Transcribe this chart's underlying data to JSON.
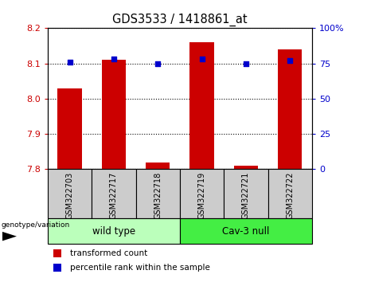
{
  "title": "GDS3533 / 1418861_at",
  "samples": [
    "GSM322703",
    "GSM322717",
    "GSM322718",
    "GSM322719",
    "GSM322721",
    "GSM322722"
  ],
  "red_values": [
    8.03,
    8.11,
    7.82,
    8.16,
    7.81,
    8.14
  ],
  "blue_values": [
    76,
    78,
    75,
    78,
    75,
    77
  ],
  "ylim_left": [
    7.8,
    8.2
  ],
  "ylim_right": [
    0,
    100
  ],
  "yticks_left": [
    7.8,
    7.9,
    8.0,
    8.1,
    8.2
  ],
  "yticks_right": [
    0,
    25,
    50,
    75,
    100
  ],
  "red_color": "#cc0000",
  "blue_color": "#0000cc",
  "bar_width": 0.55,
  "groups": [
    {
      "label": "wild type",
      "indices": [
        0,
        1,
        2
      ],
      "color": "#bbffbb"
    },
    {
      "label": "Cav-3 null",
      "indices": [
        3,
        4,
        5
      ],
      "color": "#44ee44"
    }
  ],
  "genotype_label": "genotype/variation",
  "legend_red": "transformed count",
  "legend_blue": "percentile rank within the sample",
  "sample_bg": "#cccccc",
  "plot_bg": "#ffffff"
}
